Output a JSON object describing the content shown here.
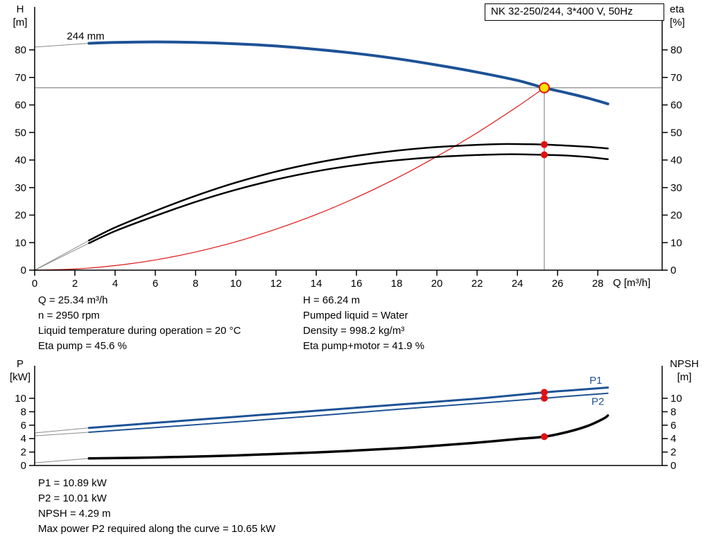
{
  "operating_point": {
    "q": "Q = 25.34 m³/h",
    "n": "n = 2950 rpm",
    "liquid_temp": "Liquid temperature during operation = 20 °C",
    "eta_pump": "Eta pump = 45.6 %",
    "h": "H = 66.24 m",
    "pumped_liquid": "Pumped liquid = Water",
    "density": "Density = 998.2 kg/m³",
    "eta_pump_motor": "Eta pump+motor = 41.9 %"
  },
  "power_data": {
    "p1": "P1 = 10.89 kW",
    "p2": "P2 = 10.01 kW",
    "npsh": "NPSH = 4.29 m",
    "max_power": "Max power P2 required along the curve = 10.65 kW"
  },
  "colors": {
    "curve_blue": "#1d5296",
    "curve_black": "#000000",
    "curve_red": "#e01212",
    "guide_gray": "#707070",
    "leader_gray": "#8a8a8a",
    "marker_yellow": "#ffe000"
  },
  "chart_data": [
    {
      "type": "line",
      "title": "NK 32-250/244, 3*400 V, 50Hz",
      "xlabel": "Q [m³/h]",
      "ylabel_left": "H",
      "ylabel_left_unit": "[m]",
      "ylabel_right": "eta",
      "ylabel_right_unit": "[%]",
      "xlim": [
        0,
        31.2
      ],
      "ylim": [
        0,
        95.6
      ],
      "x_ticks": [
        0,
        2,
        4,
        6,
        8,
        10,
        12,
        14,
        16,
        18,
        20,
        22,
        24,
        26,
        28
      ],
      "y_ticks": [
        0,
        10,
        20,
        30,
        40,
        50,
        60,
        70,
        80
      ],
      "duty_point": {
        "Q": 25.34,
        "H": 66.24,
        "eta_pump": 45.6,
        "eta_pump_motor": 41.9
      },
      "guides": [
        {
          "type": "h",
          "name": "duty-head-guideline",
          "value": 66.24,
          "color": "#707070",
          "width": 1
        },
        {
          "type": "v",
          "name": "duty-flow-guideline",
          "value": 25.34,
          "from": 0,
          "to": 68.2,
          "color": "#707070",
          "width": 1
        }
      ],
      "series": [
        {
          "name": "head-curve-leader",
          "color": "#8a8a8a",
          "width": 1,
          "smooth": false,
          "points": [
            [
              0,
              81.0
            ],
            [
              2.7,
              82.4
            ]
          ]
        },
        {
          "name": "eta-pump-leader",
          "color": "#8a8a8a",
          "width": 1,
          "smooth": false,
          "points": [
            [
              0,
              0
            ],
            [
              2.7,
              10.8
            ]
          ]
        },
        {
          "name": "eta-pump-motor-leader",
          "color": "#8a8a8a",
          "width": 1,
          "smooth": false,
          "points": [
            [
              0,
              0
            ],
            [
              2.7,
              9.8
            ]
          ]
        },
        {
          "name": "system-curve",
          "color": "#e01212",
          "width": 1.2,
          "smooth": true,
          "points": [
            [
              0,
              0
            ],
            [
              2,
              0.4
            ],
            [
              4,
              1.65
            ],
            [
              6,
              3.7
            ],
            [
              8,
              6.6
            ],
            [
              10,
              10.3
            ],
            [
              12,
              14.9
            ],
            [
              14,
              20.2
            ],
            [
              16,
              26.4
            ],
            [
              18,
              33.4
            ],
            [
              20,
              41.3
            ],
            [
              22,
              49.9
            ],
            [
              24,
              59.4
            ],
            [
              25.34,
              66.24
            ]
          ]
        },
        {
          "name": "eta-pump-curve",
          "color": "#000000",
          "width": 2.5,
          "smooth": true,
          "points": [
            [
              2.7,
              10.8
            ],
            [
              4,
              15.5
            ],
            [
              6,
              21.5
            ],
            [
              8,
              27.0
            ],
            [
              10,
              31.8
            ],
            [
              12,
              35.8
            ],
            [
              14,
              39.0
            ],
            [
              16,
              41.5
            ],
            [
              18,
              43.4
            ],
            [
              20,
              44.7
            ],
            [
              22,
              45.5
            ],
            [
              23.5,
              45.8
            ],
            [
              25.34,
              45.6
            ],
            [
              26.5,
              45.2
            ],
            [
              27.5,
              44.8
            ],
            [
              28.5,
              44.2
            ]
          ]
        },
        {
          "name": "eta-pump-motor-curve",
          "color": "#000000",
          "width": 2.5,
          "smooth": true,
          "points": [
            [
              2.7,
              9.8
            ],
            [
              4,
              14.2
            ],
            [
              6,
              19.7
            ],
            [
              8,
              24.8
            ],
            [
              10,
              29.2
            ],
            [
              12,
              32.9
            ],
            [
              14,
              35.9
            ],
            [
              16,
              38.2
            ],
            [
              18,
              39.9
            ],
            [
              20,
              41.1
            ],
            [
              22,
              41.8
            ],
            [
              23.5,
              42.1
            ],
            [
              25.34,
              41.9
            ],
            [
              26.5,
              41.6
            ],
            [
              27.5,
              41.1
            ],
            [
              28.5,
              40.3
            ]
          ]
        },
        {
          "name": "head-curve-244mm",
          "color": "#1d5296",
          "width": 4,
          "smooth": true,
          "points": [
            [
              2.7,
              82.4
            ],
            [
              4,
              82.7
            ],
            [
              6,
              82.9
            ],
            [
              8,
              82.7
            ],
            [
              10,
              82.2
            ],
            [
              12,
              81.4
            ],
            [
              14,
              80.2
            ],
            [
              16,
              78.7
            ],
            [
              18,
              76.8
            ],
            [
              20,
              74.5
            ],
            [
              22,
              71.9
            ],
            [
              24,
              68.9
            ],
            [
              25.34,
              66.24
            ],
            [
              26.5,
              64.3
            ],
            [
              27.5,
              62.5
            ],
            [
              28.5,
              60.4
            ]
          ]
        }
      ],
      "labels": [
        {
          "name": "impeller-diameter-label",
          "text": "244 mm",
          "x": 1.6,
          "y": 83.8,
          "color": "#000000",
          "anchor": "start"
        }
      ],
      "markers": [
        {
          "name": "eta-pump-duty-dot",
          "x": 25.34,
          "y": 45.6,
          "r": 5,
          "fill": "#e01212"
        },
        {
          "name": "eta-pump-motor-duty-dot",
          "x": 25.34,
          "y": 41.9,
          "r": 5,
          "fill": "#e01212"
        },
        {
          "name": "duty-point-marker",
          "x": 25.34,
          "y": 66.24,
          "r": 7,
          "fill": "#ffe000",
          "stroke": "#e01212",
          "stroke_width": 2,
          "interactable": true
        }
      ]
    },
    {
      "type": "line",
      "title": "",
      "xlabel": "",
      "ylabel_left": "P",
      "ylabel_left_unit": "[kW]",
      "ylabel_right": "NPSH",
      "ylabel_right_unit": "[m]",
      "xlim": [
        0,
        31.2
      ],
      "ylim": [
        0,
        14.85
      ],
      "x_ticks": [],
      "y_ticks": [
        0,
        2,
        4,
        6,
        8,
        10
      ],
      "duty_point": {
        "Q": 25.34,
        "P1": 10.89,
        "P2": 10.01,
        "NPSH": 4.29
      },
      "guides": [],
      "series": [
        {
          "name": "p1-leader",
          "color": "#8a8a8a",
          "width": 1,
          "smooth": false,
          "points": [
            [
              0,
              4.85
            ],
            [
              2.7,
              5.6
            ]
          ]
        },
        {
          "name": "p2-leader",
          "color": "#8a8a8a",
          "width": 1,
          "smooth": false,
          "points": [
            [
              0,
              4.4
            ],
            [
              2.7,
              4.95
            ]
          ]
        },
        {
          "name": "npsh-leader",
          "color": "#8a8a8a",
          "width": 1,
          "smooth": false,
          "points": [
            [
              0,
              0.4
            ],
            [
              2.7,
              1.05
            ]
          ]
        },
        {
          "name": "npsh-curve",
          "color": "#000000",
          "width": 3.5,
          "smooth": true,
          "points": [
            [
              2.7,
              1.05
            ],
            [
              6,
              1.2
            ],
            [
              10,
              1.5
            ],
            [
              14,
              1.95
            ],
            [
              18,
              2.55
            ],
            [
              20,
              2.95
            ],
            [
              22,
              3.4
            ],
            [
              24,
              3.95
            ],
            [
              25.34,
              4.29
            ],
            [
              26.5,
              5.0
            ],
            [
              27.5,
              5.9
            ],
            [
              28.3,
              7.0
            ],
            [
              28.5,
              7.45
            ]
          ]
        },
        {
          "name": "p2-curve",
          "color": "#1d5296",
          "width": 2,
          "smooth": true,
          "points": [
            [
              2.7,
              4.95
            ],
            [
              6,
              5.65
            ],
            [
              10,
              6.5
            ],
            [
              14,
              7.4
            ],
            [
              18,
              8.35
            ],
            [
              22,
              9.25
            ],
            [
              25.34,
              10.01
            ],
            [
              26.5,
              10.3
            ],
            [
              28.5,
              10.75
            ]
          ]
        },
        {
          "name": "p1-curve",
          "color": "#1d5296",
          "width": 3,
          "smooth": true,
          "points": [
            [
              2.7,
              5.6
            ],
            [
              6,
              6.35
            ],
            [
              10,
              7.25
            ],
            [
              14,
              8.15
            ],
            [
              18,
              9.05
            ],
            [
              22,
              9.95
            ],
            [
              25.34,
              10.89
            ],
            [
              26.5,
              11.15
            ],
            [
              28.5,
              11.6
            ]
          ]
        }
      ],
      "labels": [
        {
          "name": "p1-curve-label",
          "text": "P1",
          "x": 27.9,
          "y": 12.15,
          "color": "#1d5296",
          "anchor": "middle"
        },
        {
          "name": "p2-curve-label",
          "text": "P2",
          "x": 28.0,
          "y": 9.0,
          "color": "#1d5296",
          "anchor": "middle"
        }
      ],
      "markers": [
        {
          "name": "p1-duty-dot",
          "x": 25.34,
          "y": 10.89,
          "r": 5,
          "fill": "#e01212"
        },
        {
          "name": "p2-duty-dot",
          "x": 25.34,
          "y": 10.01,
          "r": 5,
          "fill": "#e01212"
        },
        {
          "name": "npsh-duty-dot",
          "x": 25.34,
          "y": 4.29,
          "r": 5,
          "fill": "#e01212"
        }
      ]
    }
  ]
}
